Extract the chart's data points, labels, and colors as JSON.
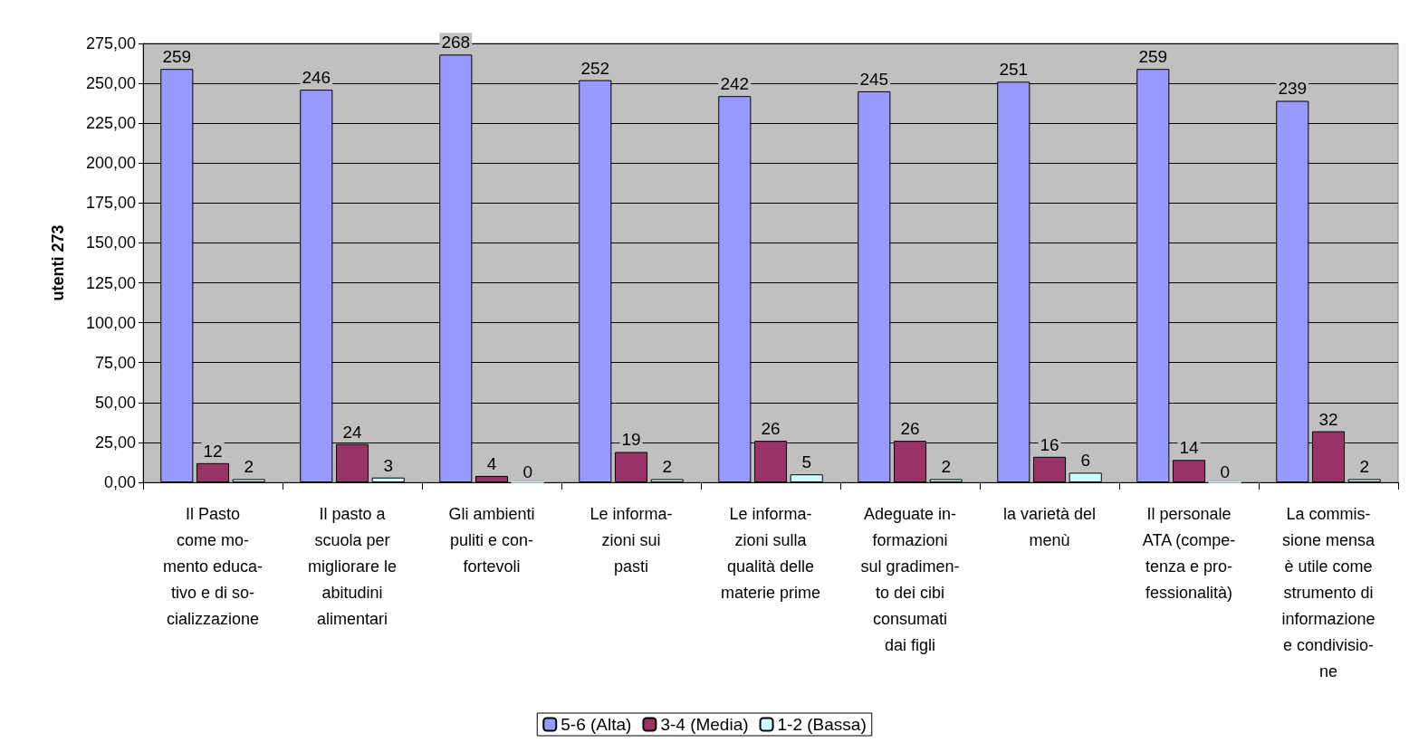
{
  "chart_data": {
    "type": "bar",
    "ylabel": "utenti 273",
    "categories": [
      "Il Pasto\ncome mo-\nmento educa-\ntivo e di so-\ncializzazione",
      "Il pasto a\nscuola per\nmigliorare le\nabitudini\nalimentari",
      "Gli ambienti\npuliti e con-\nfortevoli",
      "Le informa-\nzioni sui\npasti",
      "Le informa-\nzioni sulla\nqualità delle\nmaterie prime",
      "Adeguate in-\nformazioni\nsul gradimen-\nto dei cibi\nconsumati\ndai figli",
      "la varietà del\nmenù",
      "Il personale\nATA (compe-\ntenza e pro-\nfessionalità)",
      "La commis-\nsione mensa\nè utile come\nstrumento di\ninformazione\ne condivisio-\nne"
    ],
    "series": [
      {
        "name": "5-6 (Alta)",
        "color": "#9999ff",
        "values": [
          259,
          246,
          268,
          252,
          242,
          245,
          251,
          259,
          239
        ]
      },
      {
        "name": "3-4 (Media)",
        "color": "#993366",
        "values": [
          12,
          24,
          4,
          19,
          26,
          26,
          16,
          14,
          32
        ]
      },
      {
        "name": "1-2 (Bassa)",
        "color": "#ccffff",
        "values": [
          2,
          3,
          0,
          2,
          5,
          2,
          6,
          0,
          2
        ]
      }
    ],
    "ylim": [
      0,
      275
    ],
    "yticks": [
      {
        "value": 0,
        "label": "0,00"
      },
      {
        "value": 25,
        "label": "25,00"
      },
      {
        "value": 50,
        "label": "50,00"
      },
      {
        "value": 75,
        "label": "75,00"
      },
      {
        "value": 100,
        "label": "100,00"
      },
      {
        "value": 125,
        "label": "125,00"
      },
      {
        "value": 150,
        "label": "150,00"
      },
      {
        "value": 175,
        "label": "175,00"
      },
      {
        "value": 200,
        "label": "200,00"
      },
      {
        "value": 225,
        "label": "225,00"
      },
      {
        "value": 250,
        "label": "250,00"
      },
      {
        "value": 275,
        "label": "275,00"
      }
    ],
    "grid": "y",
    "legend": "bottom",
    "data_labels": true
  }
}
